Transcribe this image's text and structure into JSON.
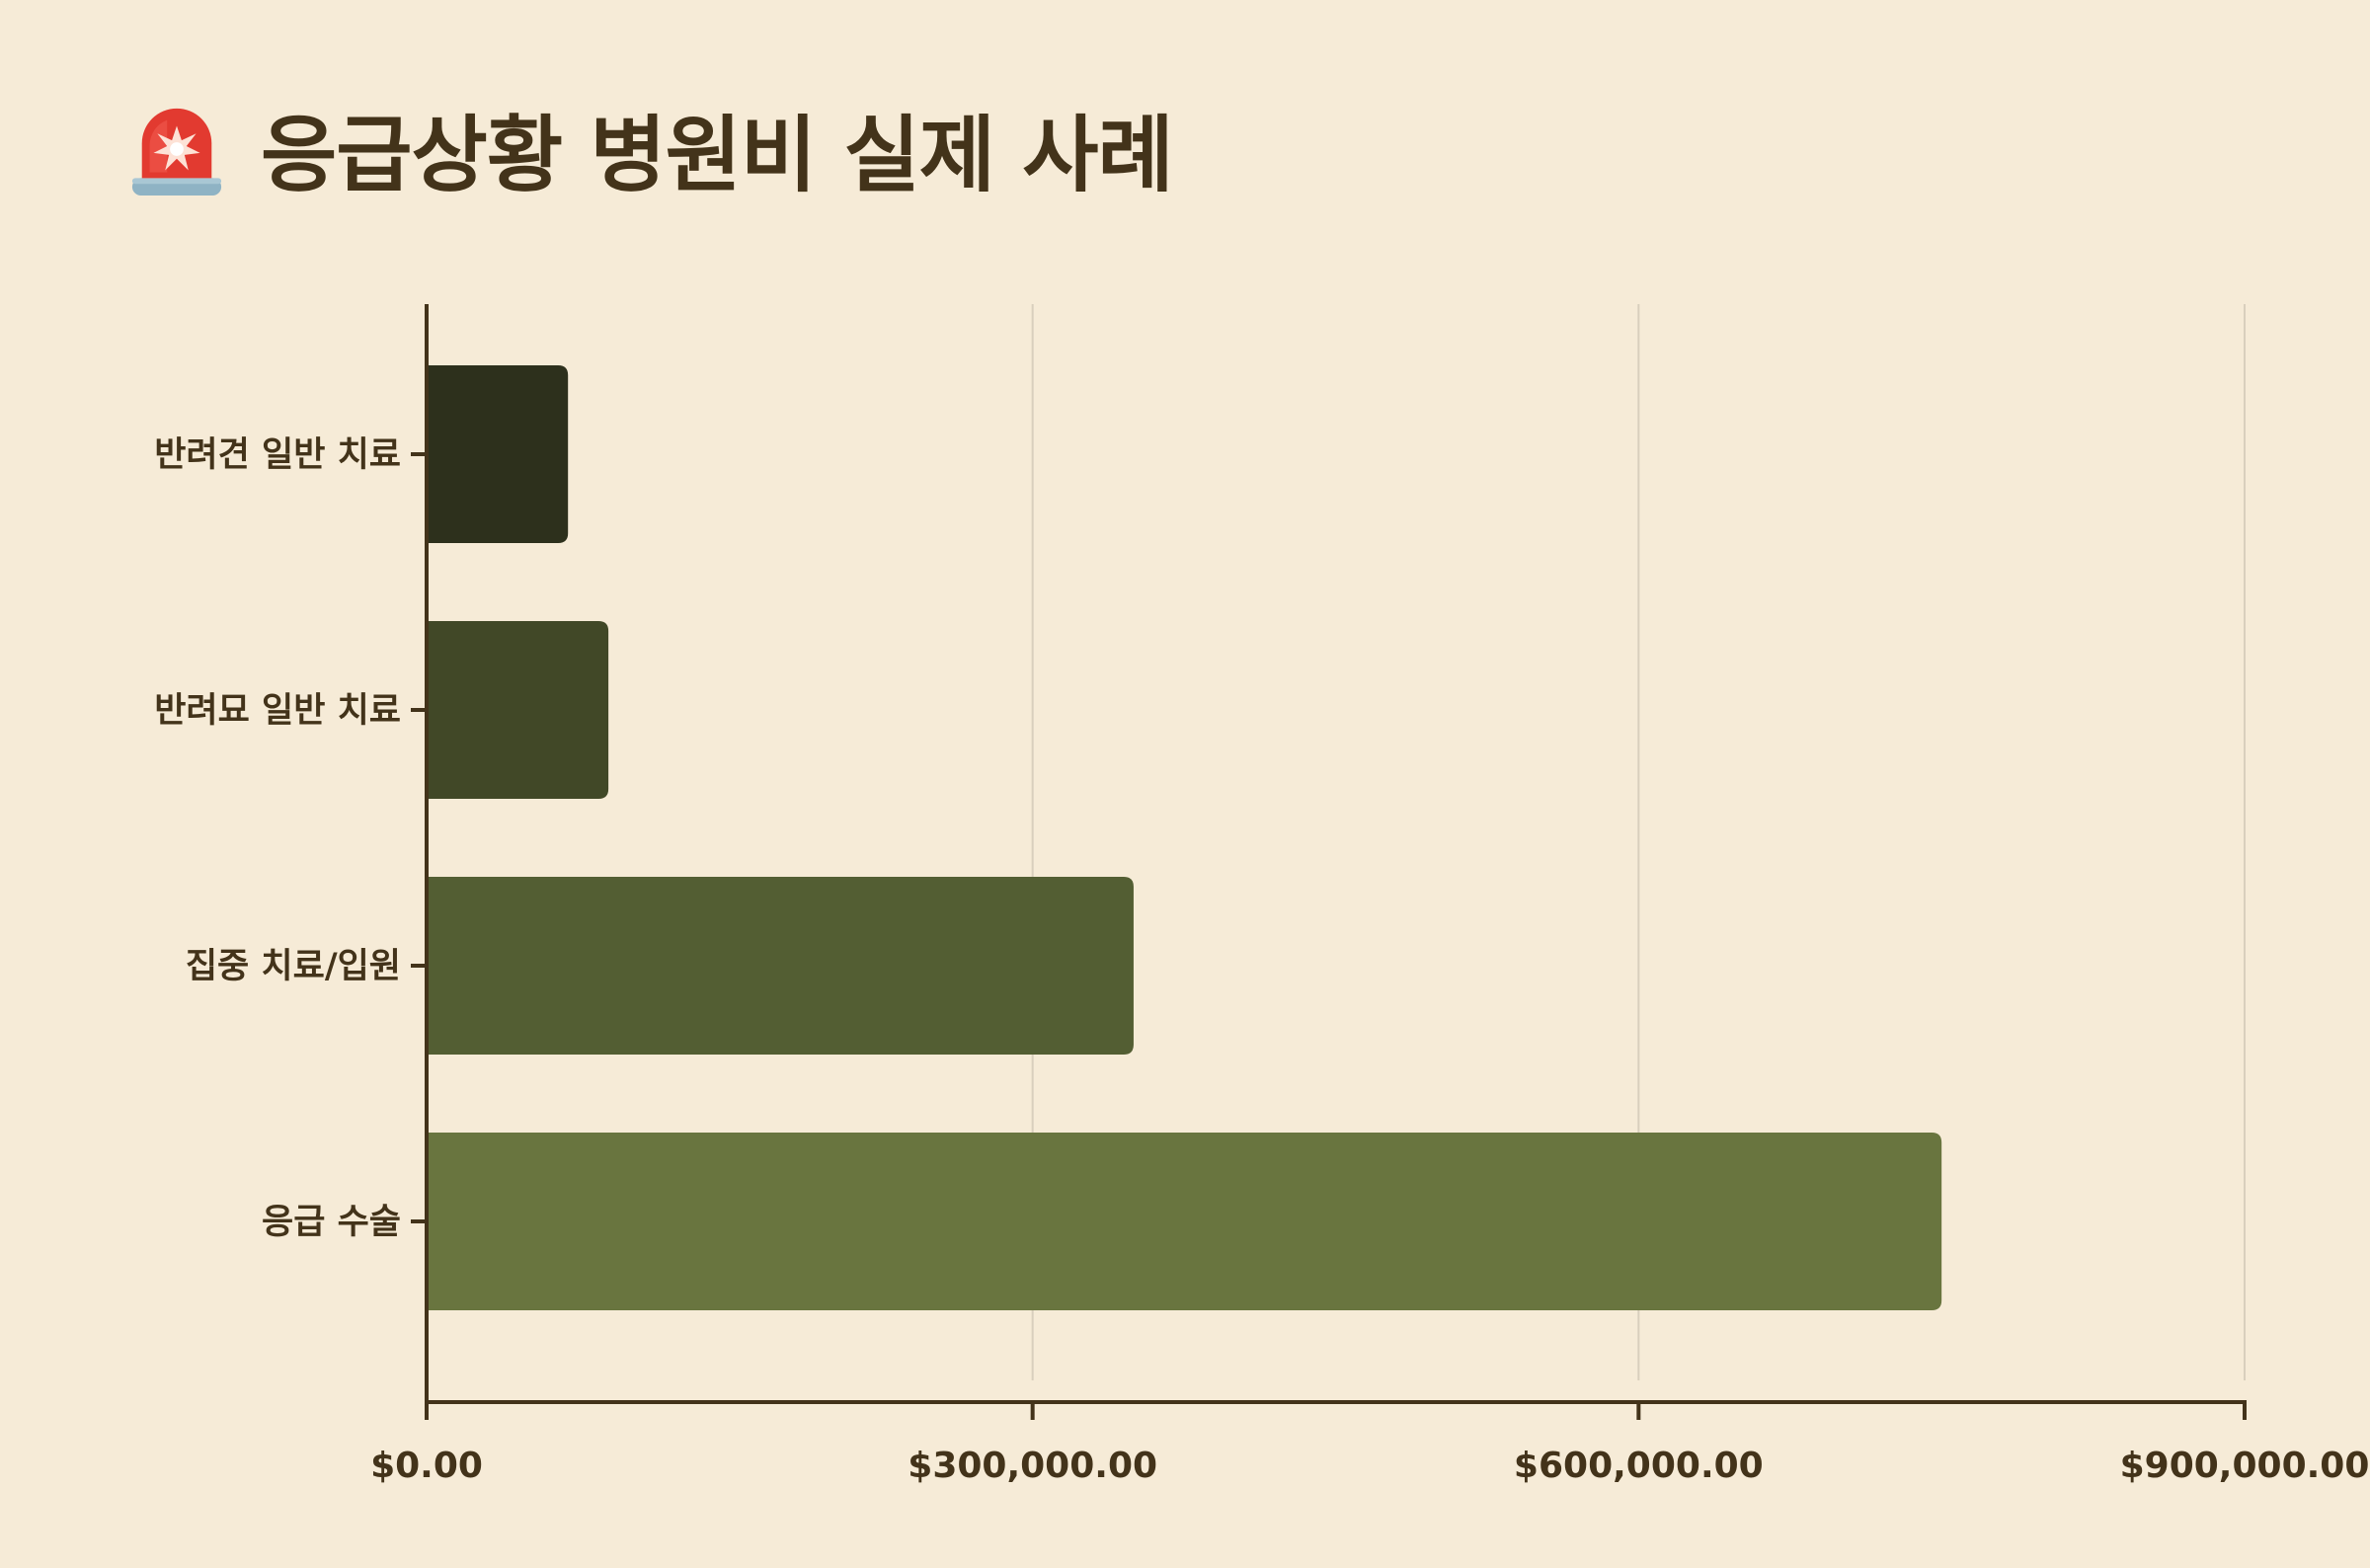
{
  "title": "응급상황 병원비 실제 사례",
  "title_icon": "police-siren-icon",
  "colors": {
    "background": "#f6ebd7",
    "text": "#43331a",
    "axis": "#43331a",
    "grid": "#d9cfbd",
    "bars": [
      "#2d301c",
      "#414827",
      "#535e33",
      "#69753f"
    ]
  },
  "chart_data": {
    "type": "bar",
    "orientation": "horizontal",
    "categories": [
      "반려견 일반 치료",
      "반려묘 일반 치료",
      "집중 치료/입원",
      "응급 수술"
    ],
    "values": [
      70000,
      90000,
      350000,
      750000
    ],
    "xlim": [
      0,
      900000
    ],
    "x_ticks": [
      0,
      300000,
      600000,
      900000
    ],
    "x_tick_labels": [
      "$0.00",
      "$300,000.00",
      "$600,000.00",
      "$900,000.00"
    ],
    "xlabel": "",
    "ylabel": "",
    "grid": "vertical",
    "legend": "none"
  }
}
